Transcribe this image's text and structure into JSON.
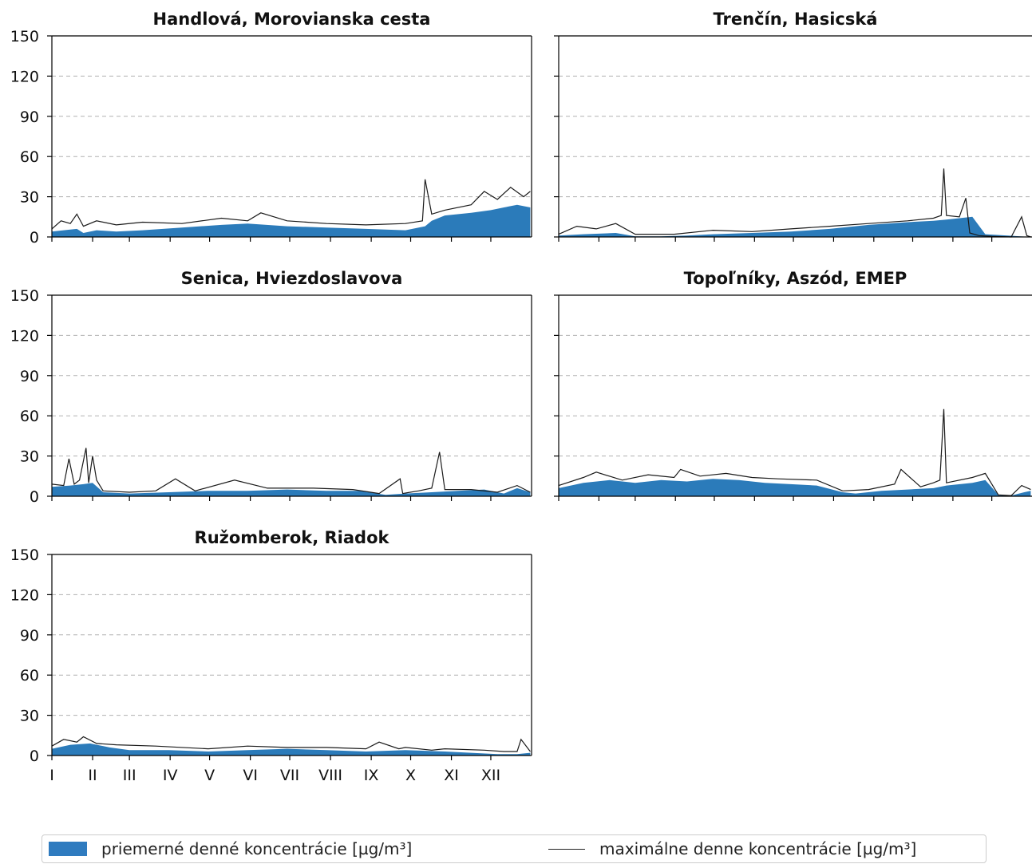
{
  "colors": {
    "fill": "#2b7bba",
    "line": "#1a1a1a",
    "grid": "#b0b0b0"
  },
  "axis": {
    "ylim": [
      0,
      150
    ],
    "yticks": [
      0,
      30,
      60,
      90,
      120,
      150
    ],
    "months": [
      "I",
      "II",
      "III",
      "IV",
      "V",
      "VI",
      "VII",
      "VIII",
      "IX",
      "X",
      "XI",
      "XII"
    ]
  },
  "legend": {
    "mean": "priemerné denné koncentrácie [µg/m³]",
    "max": "maximálne denne koncentrácie [µg/m³]"
  },
  "chart_data": [
    {
      "type": "area",
      "title": "Handlová, Morovianska cesta",
      "ylim": [
        0,
        150
      ],
      "grid": true,
      "series": [
        {
          "name": "priemerné denné koncentrácie [µg/m³]",
          "x": [
            1,
            10,
            20,
            25,
            35,
            50,
            70,
            100,
            130,
            150,
            180,
            210,
            240,
            270,
            285,
            290,
            300,
            320,
            335,
            345,
            355,
            365
          ],
          "values": [
            4,
            5,
            6,
            3,
            5,
            4,
            5,
            7,
            9,
            10,
            8,
            7,
            6,
            5,
            8,
            12,
            16,
            18,
            20,
            22,
            24,
            22
          ]
        },
        {
          "name": "maximálne denne koncentrácie [µg/m³]",
          "x": [
            1,
            8,
            15,
            20,
            25,
            35,
            50,
            70,
            100,
            130,
            150,
            160,
            180,
            210,
            240,
            270,
            283,
            285,
            290,
            300,
            320,
            330,
            340,
            350,
            360,
            365
          ],
          "values": [
            6,
            12,
            10,
            17,
            8,
            12,
            9,
            11,
            10,
            14,
            12,
            18,
            12,
            10,
            9,
            10,
            12,
            43,
            17,
            20,
            24,
            34,
            28,
            37,
            30,
            34
          ]
        }
      ]
    },
    {
      "type": "area",
      "title": "Trenčín, Hasicská",
      "ylim": [
        0,
        150
      ],
      "grid": true,
      "series": [
        {
          "name": "priemerné denné koncentrácie [µg/m³]",
          "x": [
            1,
            20,
            45,
            60,
            80,
            100,
            120,
            150,
            180,
            210,
            240,
            270,
            290,
            300,
            310,
            320,
            330,
            365
          ],
          "values": [
            1,
            2,
            3,
            0.5,
            0.5,
            1,
            2,
            3,
            4,
            6,
            9,
            11,
            12,
            13,
            14,
            15,
            2,
            0
          ]
        },
        {
          "name": "maximálne denne koncentrácie [µg/m³]",
          "x": [
            1,
            15,
            30,
            45,
            60,
            90,
            120,
            150,
            180,
            210,
            240,
            270,
            290,
            296,
            298,
            300,
            310,
            315,
            318,
            325,
            335,
            350,
            358,
            362,
            365
          ],
          "values": [
            2,
            8,
            6,
            10,
            2,
            2,
            5,
            4,
            6,
            8,
            10,
            12,
            14,
            16,
            51,
            16,
            15,
            29,
            3,
            1,
            0.5,
            0,
            15,
            1,
            0
          ]
        }
      ]
    },
    {
      "type": "area",
      "title": "Senica, Hviezdoslavova",
      "ylim": [
        0,
        150
      ],
      "grid": true,
      "series": [
        {
          "name": "priemerné denné koncentrácie [µg/m³]",
          "x": [
            1,
            15,
            25,
            32,
            40,
            60,
            90,
            120,
            150,
            180,
            210,
            235,
            255,
            270,
            290,
            310,
            330,
            345,
            355,
            365
          ],
          "values": [
            7,
            8,
            9,
            10,
            3,
            2,
            3,
            4,
            4,
            5,
            4,
            4,
            1,
            2,
            3,
            4,
            5,
            2,
            6,
            3
          ]
        },
        {
          "name": "maximálne denne koncentrácie [µg/m³]",
          "x": [
            1,
            10,
            14,
            18,
            22,
            27,
            29,
            32,
            35,
            40,
            60,
            80,
            95,
            110,
            140,
            165,
            200,
            230,
            250,
            266,
            268,
            280,
            290,
            296,
            300,
            320,
            340,
            355,
            365
          ],
          "values": [
            9,
            8,
            28,
            9,
            12,
            36,
            10,
            30,
            12,
            4,
            3,
            4,
            13,
            4,
            12,
            6,
            6,
            5,
            2,
            13,
            2,
            4,
            6,
            33,
            5,
            5,
            3,
            8,
            3
          ]
        }
      ]
    },
    {
      "type": "area",
      "title": "Topoľníky, Aszód, EMEP",
      "ylim": [
        0,
        150
      ],
      "grid": true,
      "series": [
        {
          "name": "priemerné denné koncentrácie [µg/m³]",
          "x": [
            1,
            20,
            40,
            60,
            80,
            100,
            120,
            140,
            160,
            180,
            200,
            220,
            230,
            250,
            270,
            290,
            300,
            320,
            330,
            340,
            350,
            360,
            365
          ],
          "values": [
            6,
            10,
            12,
            10,
            12,
            11,
            13,
            12,
            10,
            9,
            8,
            3,
            2,
            4,
            5,
            6,
            8,
            10,
            12,
            1,
            0.5,
            3,
            4
          ]
        },
        {
          "name": "maximálne denne koncentrácie [µg/m³]",
          "x": [
            1,
            20,
            30,
            50,
            70,
            90,
            95,
            110,
            130,
            150,
            170,
            200,
            220,
            240,
            260,
            265,
            280,
            290,
            295,
            298,
            300,
            320,
            330,
            340,
            350,
            358,
            365
          ],
          "values": [
            8,
            14,
            18,
            12,
            16,
            14,
            20,
            15,
            17,
            14,
            13,
            12,
            4,
            5,
            9,
            20,
            7,
            10,
            12,
            65,
            10,
            14,
            17,
            1,
            0.5,
            8,
            5
          ]
        }
      ]
    },
    {
      "type": "area",
      "title": "Ružomberok, Riadok",
      "ylim": [
        0,
        150
      ],
      "grid": true,
      "series": [
        {
          "name": "priemerné denné koncentrácie [µg/m³]",
          "x": [
            1,
            15,
            30,
            45,
            60,
            90,
            120,
            150,
            180,
            210,
            240,
            270,
            300,
            320,
            340,
            355,
            365
          ],
          "values": [
            5,
            8,
            9,
            6,
            4,
            4,
            3,
            4,
            5,
            4,
            3,
            4,
            3,
            2,
            1,
            1,
            2
          ]
        },
        {
          "name": "maximálne denne koncentrácie [µg/m³]",
          "x": [
            1,
            10,
            20,
            25,
            35,
            50,
            80,
            120,
            150,
            180,
            210,
            240,
            250,
            265,
            270,
            290,
            300,
            330,
            345,
            355,
            358,
            365
          ],
          "values": [
            7,
            12,
            10,
            14,
            9,
            8,
            7,
            5,
            7,
            6,
            6,
            5,
            10,
            5,
            6,
            4,
            5,
            4,
            3,
            3,
            12,
            3
          ]
        }
      ]
    }
  ]
}
